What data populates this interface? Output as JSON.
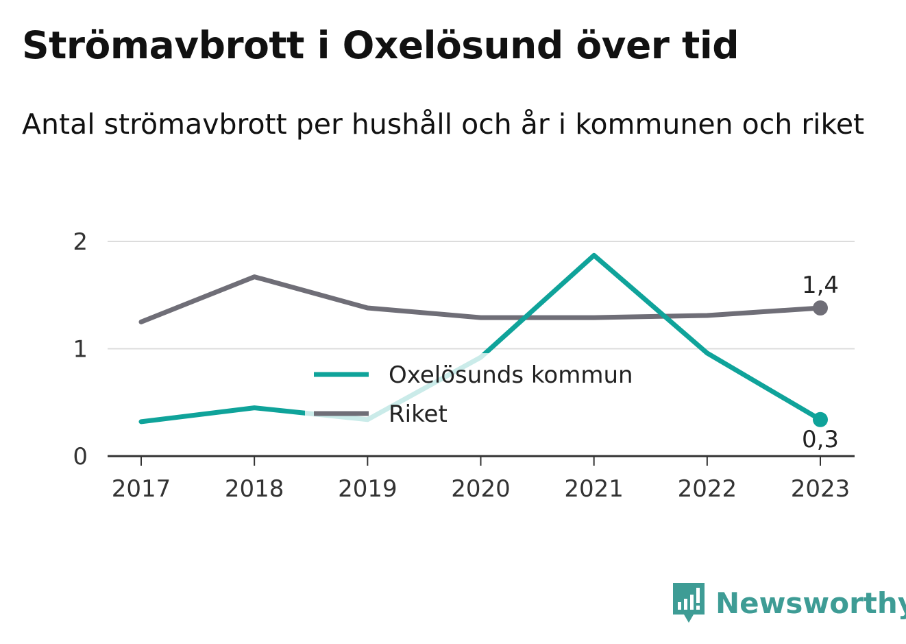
{
  "title": "Strömavbrott i Oxelösund över tid",
  "subtitle": "Antal strömavbrott per hushåll och år i kommunen och riket",
  "brand": {
    "name": "Newsworthy",
    "icon": "newsworthy-logo-icon",
    "color": "#3e9c95"
  },
  "chart_data": {
    "type": "line",
    "title": "Strömavbrott i Oxelösund över tid",
    "subtitle": "Antal strömavbrott per hushåll och år i kommunen och riket",
    "xlabel": "",
    "ylabel": "",
    "categories": [
      "2017",
      "2018",
      "2019",
      "2020",
      "2021",
      "2022",
      "2023"
    ],
    "ylim": [
      0,
      2
    ],
    "yticks": [
      {
        "value": 0,
        "label": "0"
      },
      {
        "value": 1,
        "label": "1"
      },
      {
        "value": 2,
        "label": "2"
      }
    ],
    "grid": true,
    "legend_position": "center",
    "series": [
      {
        "name": "Oxelösunds kommun",
        "color": "#0fa39a",
        "values": [
          0.32,
          0.45,
          0.34,
          0.92,
          1.87,
          0.96,
          0.34
        ],
        "end_label": "0,3",
        "end_label_position": "below"
      },
      {
        "name": "Riket",
        "color": "#6f6e77",
        "values": [
          1.25,
          1.67,
          1.38,
          1.29,
          1.29,
          1.31,
          1.38
        ],
        "end_label": "1,4",
        "end_label_position": "above"
      }
    ]
  }
}
